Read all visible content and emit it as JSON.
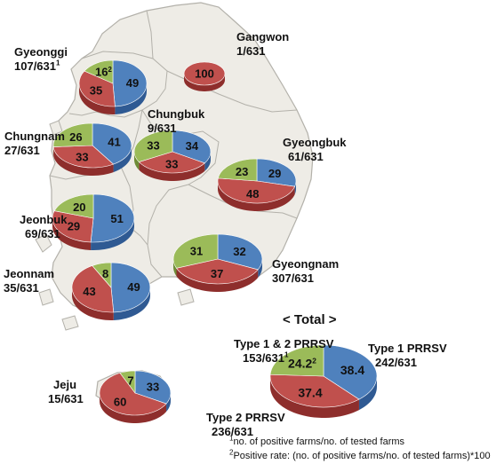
{
  "colors": {
    "type1": "#4f81bd",
    "type1_side": "#2f5a93",
    "type2": "#c0504d",
    "type2_side": "#8e2e2c",
    "type12": "#9bbb59",
    "type12_side": "#6e8c36",
    "land": "#eeece6",
    "border": "#b3b1aa"
  },
  "regions": [
    {
      "key": "gyeonggi",
      "name": "Gyeonggi",
      "count": "107/631",
      "sup": "1",
      "type1": 49,
      "type2": 35,
      "type12": 16,
      "type1_label": "49",
      "type2_label": "35",
      "type12_label": "16",
      "type12_sup": "2"
    },
    {
      "key": "gangwon",
      "name": "Gangwon",
      "count": "1/631",
      "sup": "",
      "type1": 0,
      "type2": 100,
      "type12": 0,
      "type1_label": "",
      "type2_label": "100",
      "type12_label": "",
      "type12_sup": ""
    },
    {
      "key": "chungnam",
      "name": "Chungnam",
      "count": "27/631",
      "sup": "",
      "type1": 41,
      "type2": 33,
      "type12": 26,
      "type1_label": "41",
      "type2_label": "33",
      "type12_label": "26",
      "type12_sup": ""
    },
    {
      "key": "chungbuk",
      "name": "Chungbuk",
      "count": "9/631",
      "sup": "",
      "type1": 34,
      "type2": 33,
      "type12": 33,
      "type1_label": "34",
      "type2_label": "33",
      "type12_label": "33",
      "type12_sup": ""
    },
    {
      "key": "gyeongbuk",
      "name": "Gyeongbuk",
      "count": "61/631",
      "sup": "",
      "type1": 29,
      "type2": 48,
      "type12": 23,
      "type1_label": "29",
      "type2_label": "48",
      "type12_label": "23",
      "type12_sup": ""
    },
    {
      "key": "jeonbuk",
      "name": "Jeonbuk",
      "count": "69/631",
      "sup": "",
      "type1": 51,
      "type2": 29,
      "type12": 20,
      "type1_label": "51",
      "type2_label": "29",
      "type12_label": "20",
      "type12_sup": ""
    },
    {
      "key": "gyeongnam",
      "name": "Gyeongnam",
      "count": "307/631",
      "sup": "",
      "type1": 32,
      "type2": 37,
      "type12": 31,
      "type1_label": "32",
      "type2_label": "37",
      "type12_label": "31",
      "type12_sup": ""
    },
    {
      "key": "jeonnam",
      "name": "Jeonnam",
      "count": "35/631",
      "sup": "",
      "type1": 49,
      "type2": 43,
      "type12": 8,
      "type1_label": "49",
      "type2_label": "43",
      "type12_label": "8",
      "type12_sup": ""
    },
    {
      "key": "jeju",
      "name": "Jeju",
      "count": "15/631",
      "sup": "",
      "type1": 33,
      "type2": 60,
      "type12": 7,
      "type1_label": "33",
      "type2_label": "60",
      "type12_label": "7",
      "type12_sup": ""
    }
  ],
  "total": {
    "title": "< Total >",
    "type1": 38.4,
    "type2": 37.4,
    "type12": 24.2,
    "type1_label": "38.4",
    "type2_label": "37.4",
    "type12_label": "24.2",
    "type12_sup": "2",
    "type1_name": "Type 1 PRRSV",
    "type1_count": "242/631",
    "type2_name": "Type 2 PRRSV",
    "type2_count": "236/631",
    "type12_name": "Type 1 & 2 PRRSV",
    "type12_count": "153/631",
    "type12_count_sup": "1"
  },
  "footnotes": {
    "n1_mark": "1",
    "n1_text": "no. of positive farms/no. of tested farms",
    "n2_mark": "2",
    "n2_text": "Positive rate: (no. of positive farms/no. of tested farms)*100"
  }
}
